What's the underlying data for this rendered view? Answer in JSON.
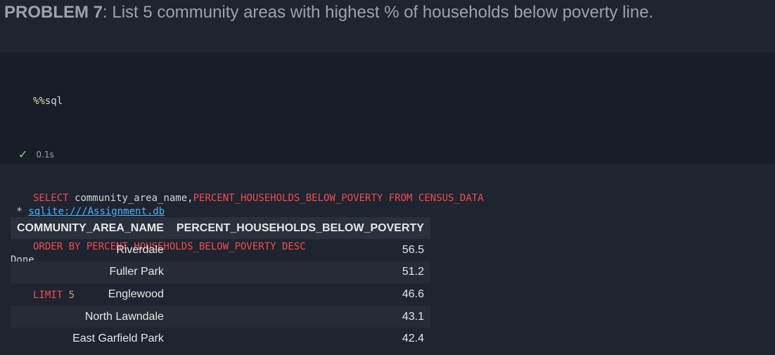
{
  "heading": {
    "label": "PROBLEM 7",
    "text": ": List 5 community areas with highest % of households below poverty line."
  },
  "code_cell": {
    "magic_pct": "%%",
    "magic_word": "sql",
    "line2": {
      "select": "SELECT ",
      "col1": "community_area_name",
      "comma": ",",
      "col2": "PERCENT_HOUSEHOLDS_BELOW_POVERTY",
      "from": " FROM ",
      "table": "CENSUS_DATA"
    },
    "line3": "ORDER BY PERCENT_HOUSEHOLDS_BELOW_POVERTY DESC",
    "line4": {
      "kw": "LIMIT ",
      "num": "5"
    },
    "status": {
      "check": "✓",
      "duration": "0.1s"
    }
  },
  "output": {
    "prefix": " * ",
    "connection": "sqlite:///Assignment.db",
    "done": "Done."
  },
  "table": {
    "headers": [
      "COMMUNITY_AREA_NAME",
      "PERCENT_HOUSEHOLDS_BELOW_POVERTY"
    ],
    "rows": [
      [
        "Riverdale",
        "56.5"
      ],
      [
        "Fuller Park",
        "51.2"
      ],
      [
        "Englewood",
        "46.6"
      ],
      [
        "North Lawndale",
        "43.1"
      ],
      [
        "East Garfield Park",
        "42.4"
      ]
    ]
  }
}
